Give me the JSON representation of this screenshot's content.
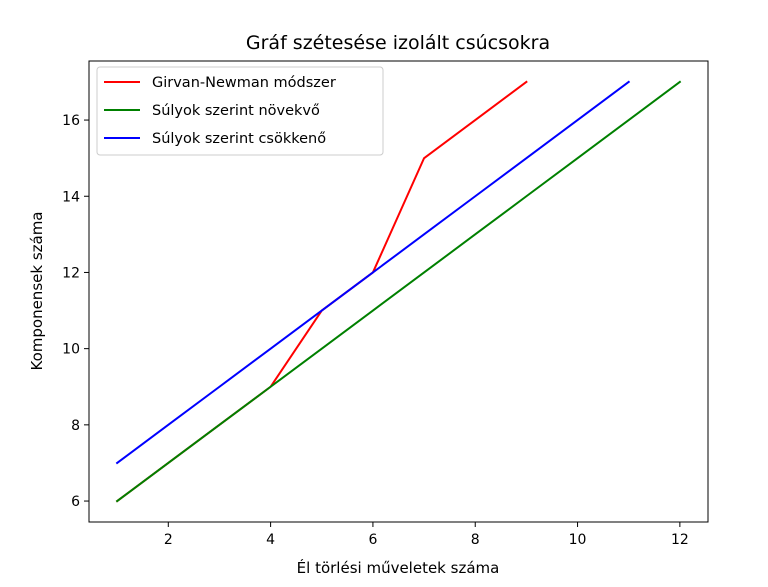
{
  "chart_data": {
    "type": "line",
    "title": "Gráf szétesése izolált csúcsokra",
    "xlabel": "Él törlési műveletek száma",
    "ylabel": "Komponensek száma",
    "xlim": [
      0.45,
      12.55
    ],
    "ylim": [
      5.45,
      17.55
    ],
    "xticks": [
      2,
      4,
      6,
      8,
      10,
      12
    ],
    "yticks": [
      6,
      8,
      10,
      12,
      14,
      16
    ],
    "grid": false,
    "legend_position": "top-left",
    "series": [
      {
        "name": "Girvan-Newman módszer",
        "color": "#ff0000",
        "x": [
          1,
          2,
          3,
          4,
          5,
          6,
          7,
          8,
          9
        ],
        "y": [
          6,
          7,
          8,
          9,
          11,
          12,
          15,
          16,
          17
        ]
      },
      {
        "name": "Súlyok szerint növekvő",
        "color": "#008000",
        "x": [
          1,
          2,
          3,
          4,
          5,
          6,
          7,
          8,
          9,
          10,
          11,
          12
        ],
        "y": [
          6,
          7,
          8,
          9,
          10,
          11,
          12,
          13,
          14,
          15,
          16,
          17
        ]
      },
      {
        "name": "Súlyok szerint csökkenő",
        "color": "#0000ff",
        "x": [
          1,
          2,
          3,
          4,
          5,
          6,
          7,
          8,
          9,
          10,
          11
        ],
        "y": [
          7,
          8,
          9,
          10,
          11,
          12,
          13,
          14,
          15,
          16,
          17
        ]
      }
    ]
  }
}
